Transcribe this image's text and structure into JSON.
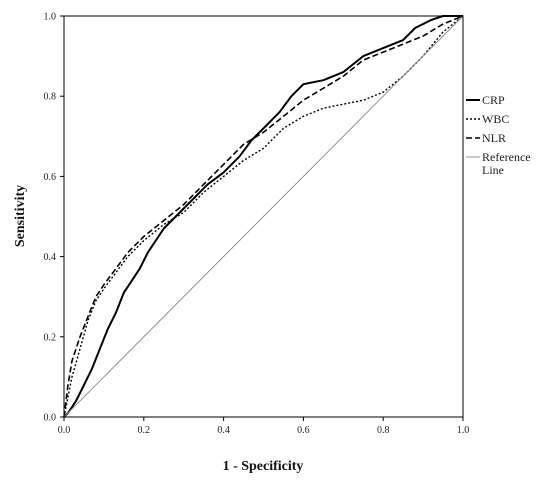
{
  "chart_data": {
    "type": "line",
    "title": "",
    "xlabel": "1 - Specificity",
    "ylabel": "Sensitivity",
    "xlim": [
      0,
      1
    ],
    "ylim": [
      0,
      1
    ],
    "grid": false,
    "legend_placement": "right",
    "x_ticks": [
      "0.0",
      "0.2",
      "0.4",
      "0.6",
      "0.8",
      "1.0"
    ],
    "y_ticks": [
      "0.0",
      "0.2",
      "0.4",
      "0.6",
      "0.8",
      "1.0"
    ],
    "series": [
      {
        "name": "CRP",
        "style": "solid",
        "color": "#000000",
        "points": [
          [
            0,
            0
          ],
          [
            0.01,
            0.01
          ],
          [
            0.03,
            0.04
          ],
          [
            0.05,
            0.08
          ],
          [
            0.07,
            0.12
          ],
          [
            0.09,
            0.17
          ],
          [
            0.11,
            0.22
          ],
          [
            0.13,
            0.26
          ],
          [
            0.15,
            0.31
          ],
          [
            0.17,
            0.34
          ],
          [
            0.19,
            0.37
          ],
          [
            0.21,
            0.41
          ],
          [
            0.23,
            0.44
          ],
          [
            0.25,
            0.47
          ],
          [
            0.28,
            0.5
          ],
          [
            0.3,
            0.52
          ],
          [
            0.33,
            0.55
          ],
          [
            0.36,
            0.58
          ],
          [
            0.4,
            0.61
          ],
          [
            0.44,
            0.65
          ],
          [
            0.47,
            0.69
          ],
          [
            0.5,
            0.72
          ],
          [
            0.54,
            0.76
          ],
          [
            0.57,
            0.8
          ],
          [
            0.6,
            0.83
          ],
          [
            0.65,
            0.84
          ],
          [
            0.7,
            0.86
          ],
          [
            0.75,
            0.9
          ],
          [
            0.8,
            0.92
          ],
          [
            0.85,
            0.94
          ],
          [
            0.88,
            0.97
          ],
          [
            0.92,
            0.99
          ],
          [
            0.95,
            1.0
          ],
          [
            1.0,
            1.0
          ]
        ]
      },
      {
        "name": "WBC",
        "style": "dotted",
        "color": "#000000",
        "points": [
          [
            0,
            0
          ],
          [
            0.01,
            0.05
          ],
          [
            0.02,
            0.1
          ],
          [
            0.04,
            0.17
          ],
          [
            0.06,
            0.24
          ],
          [
            0.08,
            0.29
          ],
          [
            0.1,
            0.32
          ],
          [
            0.13,
            0.36
          ],
          [
            0.16,
            0.4
          ],
          [
            0.2,
            0.44
          ],
          [
            0.25,
            0.48
          ],
          [
            0.3,
            0.51
          ],
          [
            0.35,
            0.56
          ],
          [
            0.4,
            0.6
          ],
          [
            0.45,
            0.64
          ],
          [
            0.5,
            0.67
          ],
          [
            0.55,
            0.72
          ],
          [
            0.6,
            0.75
          ],
          [
            0.65,
            0.77
          ],
          [
            0.7,
            0.78
          ],
          [
            0.75,
            0.79
          ],
          [
            0.8,
            0.81
          ],
          [
            0.85,
            0.85
          ],
          [
            0.9,
            0.9
          ],
          [
            0.95,
            0.96
          ],
          [
            1.0,
            1.0
          ]
        ]
      },
      {
        "name": "NLR",
        "style": "dashed",
        "color": "#000000",
        "points": [
          [
            0,
            0
          ],
          [
            0.01,
            0.08
          ],
          [
            0.02,
            0.14
          ],
          [
            0.04,
            0.2
          ],
          [
            0.06,
            0.25
          ],
          [
            0.08,
            0.3
          ],
          [
            0.1,
            0.33
          ],
          [
            0.13,
            0.37
          ],
          [
            0.16,
            0.41
          ],
          [
            0.2,
            0.45
          ],
          [
            0.25,
            0.49
          ],
          [
            0.3,
            0.53
          ],
          [
            0.35,
            0.58
          ],
          [
            0.4,
            0.63
          ],
          [
            0.45,
            0.68
          ],
          [
            0.5,
            0.71
          ],
          [
            0.55,
            0.75
          ],
          [
            0.6,
            0.79
          ],
          [
            0.65,
            0.82
          ],
          [
            0.7,
            0.85
          ],
          [
            0.75,
            0.89
          ],
          [
            0.8,
            0.91
          ],
          [
            0.85,
            0.93
          ],
          [
            0.9,
            0.95
          ],
          [
            0.95,
            0.98
          ],
          [
            1.0,
            1.0
          ]
        ]
      },
      {
        "name": "Reference Line",
        "style": "reference",
        "color": "#888888",
        "points": [
          [
            0,
            0
          ],
          [
            1,
            1
          ]
        ]
      }
    ],
    "legend": [
      {
        "label": "CRP",
        "style": "solid"
      },
      {
        "label": "WBC",
        "style": "dotted"
      },
      {
        "label": "NLR",
        "style": "dashed"
      },
      {
        "label": "Reference",
        "label2": "Line",
        "style": "reference"
      }
    ]
  }
}
